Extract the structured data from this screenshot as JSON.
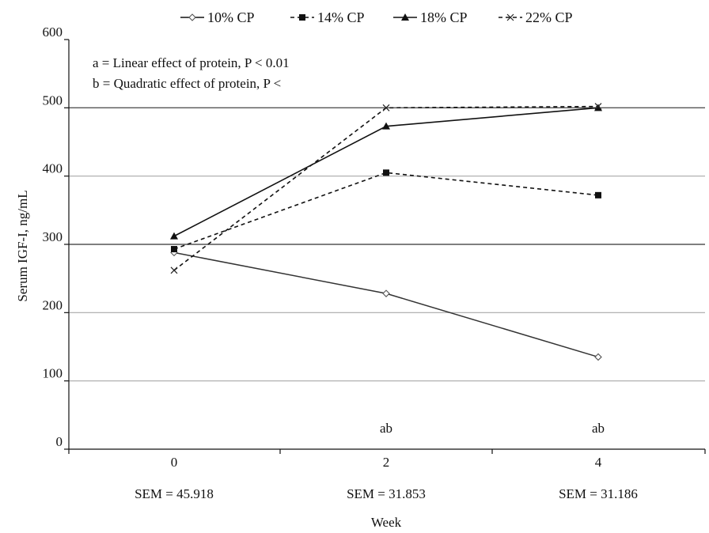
{
  "chart_data": {
    "type": "line",
    "ylabel": "Serum IGF-I, ng/mL",
    "xlabel": "Week",
    "x": [
      "0",
      "2",
      "4"
    ],
    "ylim": [
      0,
      600
    ],
    "yticks": [
      "0",
      "100",
      "200",
      "300",
      "400",
      "500",
      "600"
    ],
    "grid": true,
    "legend_position": "top",
    "series": [
      {
        "name": "10% CP",
        "values": [
          288,
          228,
          135
        ],
        "marker": "open-diamond",
        "line": "solid",
        "color": "#222222"
      },
      {
        "name": "14% CP",
        "values": [
          293,
          405,
          372
        ],
        "marker": "square",
        "line": "dashed",
        "color": "#111111"
      },
      {
        "name": "18% CP",
        "values": [
          312,
          473,
          500
        ],
        "marker": "triangle",
        "line": "solid",
        "color": "#111111"
      },
      {
        "name": "22% CP",
        "values": [
          262,
          500,
          502
        ],
        "marker": "x",
        "line": "dashed",
        "color": "#111111"
      }
    ],
    "annotations": {
      "note_a": "a = Linear effect of protein, P < 0.01",
      "note_b": "b = Quadratic effect of protein, P <",
      "sig_labels": [
        {
          "x": "2",
          "text": "ab"
        },
        {
          "x": "4",
          "text": "ab"
        }
      ],
      "sem": [
        "SEM = 45.918",
        "SEM = 31.853",
        "SEM = 31.186"
      ]
    }
  }
}
